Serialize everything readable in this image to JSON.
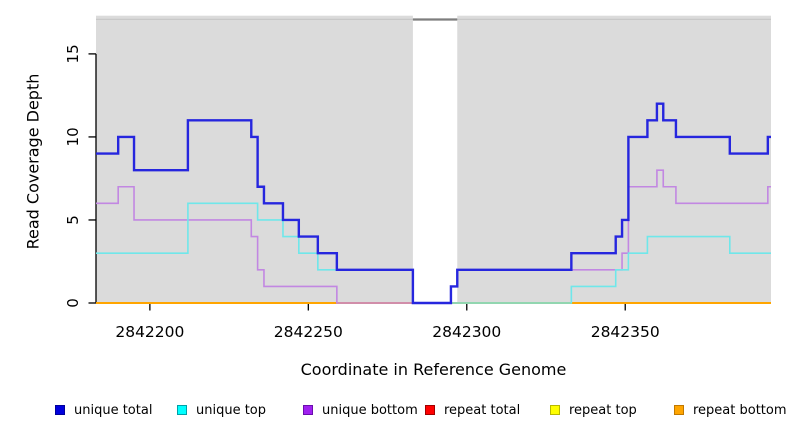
{
  "chart_data": {
    "type": "line",
    "step": true,
    "xlabel": "Coordinate in Reference Genome",
    "ylabel": "Read Coverage Depth",
    "xlim": [
      2842183,
      2842396
    ],
    "ylim": [
      0,
      17.3
    ],
    "x_ticks": [
      2842200,
      2842250,
      2842300,
      2842350
    ],
    "y_ticks": [
      0,
      5,
      10,
      15
    ],
    "gap_region": [
      2842283,
      2842297
    ],
    "colors": {
      "panel_background": "#dbdbdb",
      "gap_background": "#ffffff",
      "panel_top_border": "#c6c6c6",
      "gap_top_border": "#7e7e7e",
      "axis": "#000000"
    },
    "series": [
      {
        "name": "unique total",
        "color": "#2626de",
        "points": [
          [
            2842183,
            9
          ],
          [
            2842190,
            10
          ],
          [
            2842195,
            8
          ],
          [
            2842212,
            11
          ],
          [
            2842232,
            10
          ],
          [
            2842234,
            7
          ],
          [
            2842236,
            6
          ],
          [
            2842242,
            5
          ],
          [
            2842247,
            4
          ],
          [
            2842253,
            3
          ],
          [
            2842259,
            2
          ],
          [
            2842283,
            0
          ],
          [
            2842295,
            1
          ],
          [
            2842297,
            2
          ],
          [
            2842333,
            3
          ],
          [
            2842347,
            4
          ],
          [
            2842349,
            5
          ],
          [
            2842351,
            10
          ],
          [
            2842357,
            11
          ],
          [
            2842360,
            12
          ],
          [
            2842362,
            11
          ],
          [
            2842366,
            10
          ],
          [
            2842383,
            9
          ],
          [
            2842395,
            10
          ]
        ]
      },
      {
        "name": "unique top",
        "color": "#6fe7ea",
        "points": [
          [
            2842183,
            3
          ],
          [
            2842212,
            6
          ],
          [
            2842234,
            5
          ],
          [
            2842242,
            4
          ],
          [
            2842247,
            3
          ],
          [
            2842253,
            2
          ],
          [
            2842283,
            0
          ],
          [
            2842333,
            1
          ],
          [
            2842347,
            2
          ],
          [
            2842351,
            3
          ],
          [
            2842357,
            4
          ],
          [
            2842383,
            3
          ]
        ]
      },
      {
        "name": "unique bottom",
        "color": "#c287e2",
        "points": [
          [
            2842183,
            6
          ],
          [
            2842190,
            7
          ],
          [
            2842195,
            5
          ],
          [
            2842232,
            4
          ],
          [
            2842234,
            2
          ],
          [
            2842236,
            1
          ],
          [
            2842259,
            0
          ],
          [
            2842295,
            1
          ],
          [
            2842297,
            2
          ],
          [
            2842349,
            3
          ],
          [
            2842351,
            7
          ],
          [
            2842360,
            8
          ],
          [
            2842362,
            7
          ],
          [
            2842366,
            6
          ],
          [
            2842395,
            7
          ]
        ]
      },
      {
        "name": "repeat total",
        "color": "#cc1010",
        "points": [
          [
            2842183,
            0
          ]
        ]
      },
      {
        "name": "repeat top",
        "color": "#f0e600",
        "points": [
          [
            2842183,
            0
          ]
        ]
      },
      {
        "name": "repeat bottom",
        "color": "#ffa500",
        "points": [
          [
            2842183,
            0
          ]
        ]
      }
    ],
    "legend": [
      {
        "label": "unique total",
        "color": "#0000dd",
        "border": "#00009b"
      },
      {
        "label": "unique top",
        "color": "#00ffff",
        "border": "#00a0a8"
      },
      {
        "label": "unique bottom",
        "color": "#a020f0",
        "border": "#6a0dad"
      },
      {
        "label": "repeat total",
        "color": "#ff0000",
        "border": "#a00000"
      },
      {
        "label": "repeat top",
        "color": "#ffff00",
        "border": "#b8b800"
      },
      {
        "label": "repeat bottom",
        "color": "#ffa500",
        "border": "#c07800"
      }
    ],
    "legend_position": "bottom"
  }
}
